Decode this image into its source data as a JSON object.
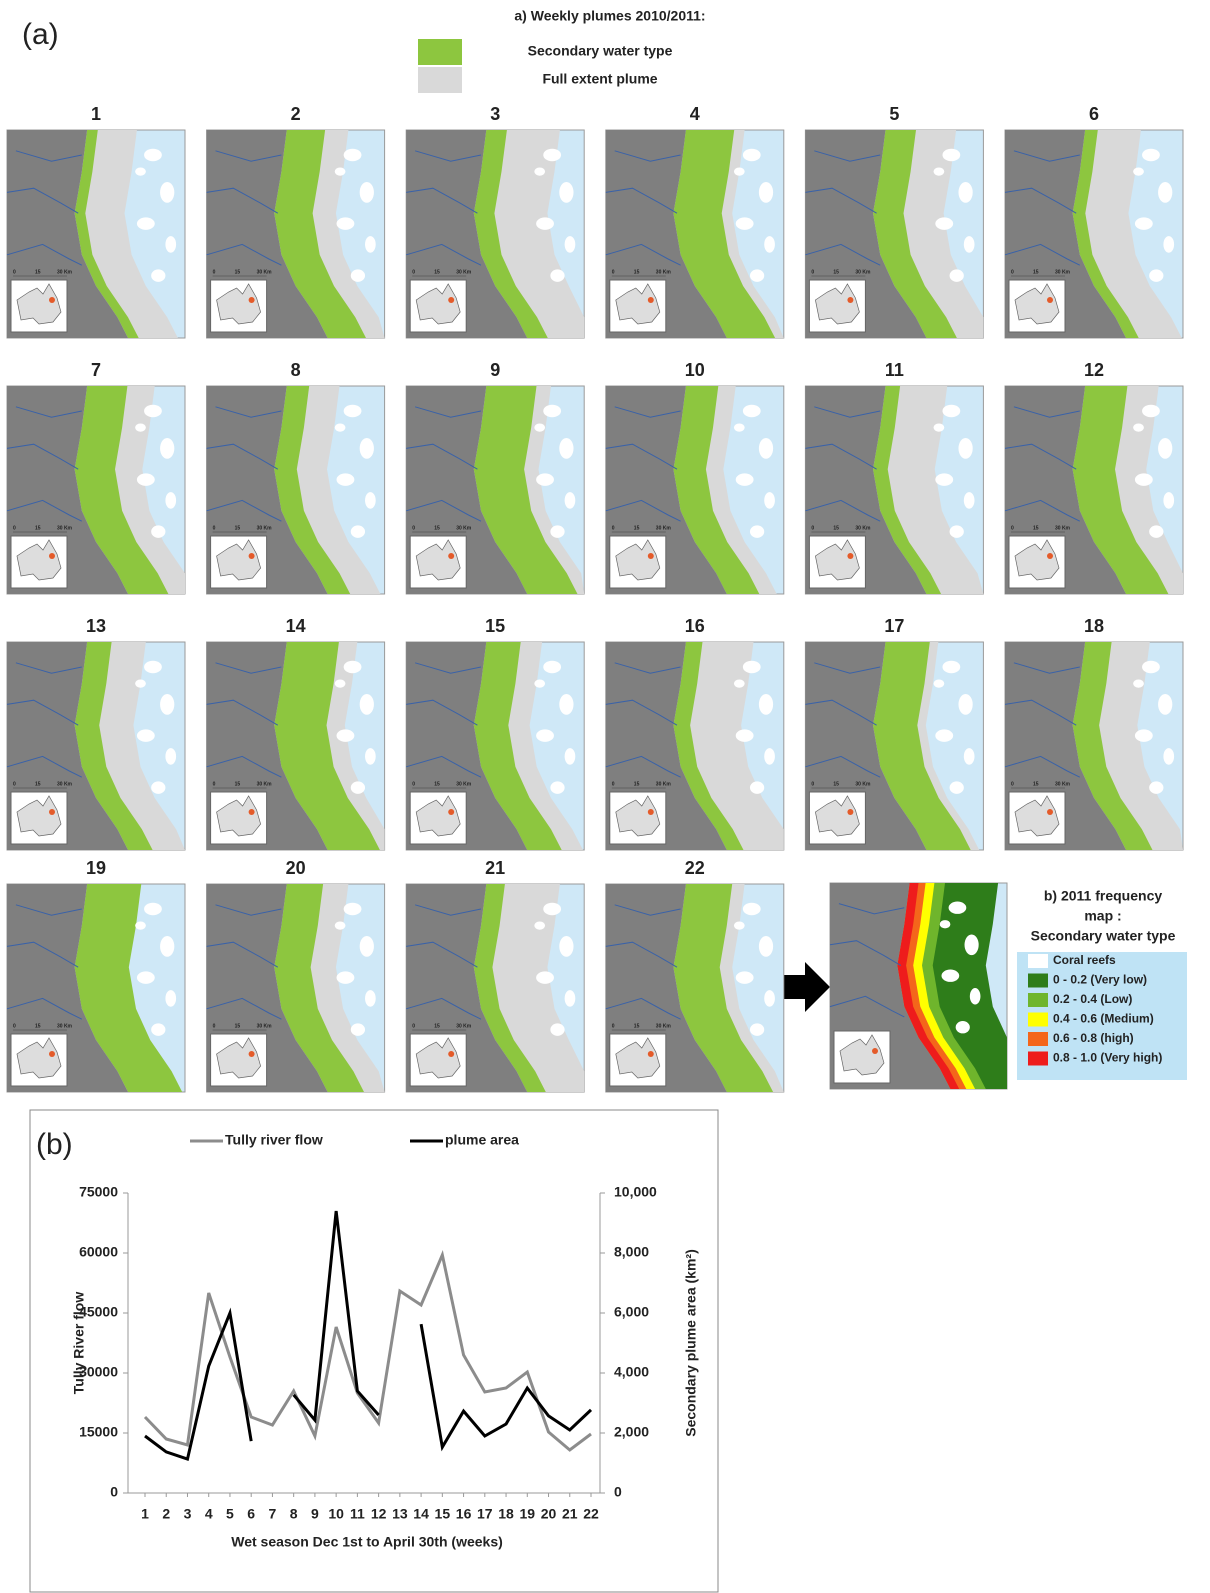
{
  "panel_a": {
    "label": "(a)",
    "title": "a) Weekly plumes 2010/2011:",
    "legend": [
      {
        "name": "Secondary water type",
        "color": "#8dc63f"
      },
      {
        "name": "Full extent plume",
        "color": "#d9d9d9"
      }
    ],
    "map_labels": [
      "1",
      "2",
      "3",
      "4",
      "5",
      "6",
      "7",
      "8",
      "9",
      "10",
      "11",
      "12",
      "13",
      "14",
      "15",
      "16",
      "17",
      "18",
      "19",
      "20",
      "21",
      "22"
    ],
    "scale_labels": [
      "0",
      "15",
      "30 Km"
    ]
  },
  "frequency_map": {
    "title_lines": [
      "b) 2011 frequency",
      "map :",
      "Secondary water type"
    ],
    "legend": [
      {
        "name": "Coral reefs",
        "color": "#ffffff"
      },
      {
        "name": "0 - 0.2 (Very low)",
        "color": "#2e7d1a"
      },
      {
        "name": "0.2 - 0.4 (Low)",
        "color": "#6fb52c"
      },
      {
        "name": "0.4 - 0.6 (Medium)",
        "color": "#ffff00"
      },
      {
        "name": "0.6 - 0.8 (high)",
        "color": "#f4661b"
      },
      {
        "name": "0.8 - 1.0 (Very high)",
        "color": "#ee1c1c"
      }
    ]
  },
  "chart_data": {
    "type": "line",
    "label": "(b)",
    "categories": [
      "1",
      "2",
      "3",
      "4",
      "5",
      "6",
      "7",
      "8",
      "9",
      "10",
      "11",
      "12",
      "13",
      "14",
      "15",
      "16",
      "17",
      "18",
      "19",
      "20",
      "21",
      "22"
    ],
    "x_label": "Wet season Dec 1st to April 30th (weeks)",
    "y_label": "Tully River flow",
    "y2_label": "Secondary plume area (km²)",
    "ylim": [
      0,
      75000
    ],
    "yticks": [
      0,
      15000,
      30000,
      45000,
      60000,
      75000
    ],
    "y2lim": [
      0,
      10000
    ],
    "y2ticks": [
      0,
      {
        "value": 2000,
        "label": "2,000"
      },
      {
        "value": 4000,
        "label": "4,000"
      },
      {
        "value": 6000,
        "label": "6,000"
      },
      {
        "value": 8000,
        "label": "8,000"
      },
      {
        "value": 10000,
        "label": "10,000"
      }
    ],
    "series": [
      {
        "name": "Tully river flow",
        "color": "#8c8c8c",
        "values": [
          19000,
          13500,
          12000,
          50000,
          34000,
          19000,
          17000,
          25500,
          14250,
          41500,
          25000,
          17500,
          50500,
          47000,
          59500,
          34500,
          25250,
          26250,
          30250,
          15250,
          10750,
          14750
        ]
      },
      {
        "name": "plume area",
        "color": "#000000",
        "axis": "y2",
        "values": [
          1900,
          1370,
          1130,
          4230,
          6000,
          1730,
          null,
          3270,
          2430,
          9400,
          3400,
          2600,
          null,
          5630,
          1530,
          2730,
          1900,
          2300,
          3500,
          2570,
          2100,
          2770
        ]
      }
    ]
  }
}
